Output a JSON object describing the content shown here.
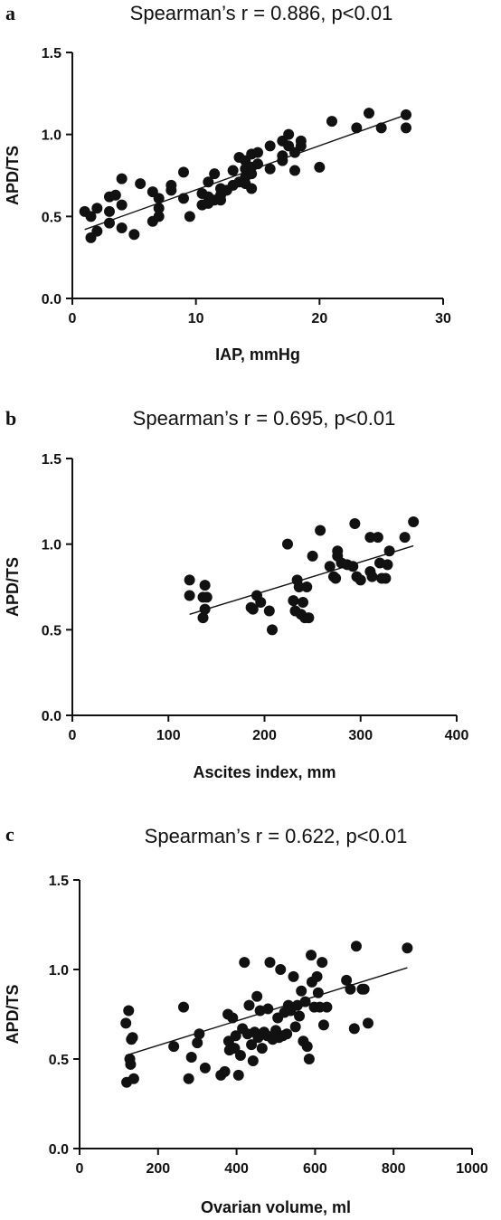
{
  "chart_data": [
    {
      "type": "scatter",
      "panel": "a",
      "title": "Spearman’s r = 0.886, p<0.01",
      "xlabel": "IAP, mmHg",
      "ylabel": "APD/TS",
      "xlim": [
        0,
        30
      ],
      "ylim": [
        0,
        1.5
      ],
      "xticks": [
        0,
        10,
        20,
        30
      ],
      "xtick_labels": [
        "0",
        "10",
        "20",
        "30"
      ],
      "yticks": [
        0,
        0.5,
        1.0,
        1.5
      ],
      "ytick_labels": [
        "0.0",
        "0.5",
        "1.0",
        "1.5"
      ],
      "grid": false,
      "fit_line": {
        "x": [
          1,
          27
        ],
        "y": [
          0.42,
          1.12
        ]
      },
      "points": [
        [
          1.0,
          0.53
        ],
        [
          1.5,
          0.5
        ],
        [
          1.5,
          0.37
        ],
        [
          2.0,
          0.55
        ],
        [
          2.0,
          0.41
        ],
        [
          3.0,
          0.62
        ],
        [
          3.0,
          0.53
        ],
        [
          3.0,
          0.46
        ],
        [
          3.5,
          0.63
        ],
        [
          4.0,
          0.73
        ],
        [
          4.0,
          0.57
        ],
        [
          4.0,
          0.43
        ],
        [
          5.0,
          0.39
        ],
        [
          5.5,
          0.7
        ],
        [
          6.5,
          0.65
        ],
        [
          6.5,
          0.47
        ],
        [
          7.0,
          0.61
        ],
        [
          7.0,
          0.55
        ],
        [
          7.0,
          0.5
        ],
        [
          8.0,
          0.69
        ],
        [
          8.0,
          0.66
        ],
        [
          9.0,
          0.77
        ],
        [
          9.0,
          0.61
        ],
        [
          9.5,
          0.5
        ],
        [
          10.5,
          0.64
        ],
        [
          10.5,
          0.57
        ],
        [
          11.0,
          0.71
        ],
        [
          11.0,
          0.62
        ],
        [
          11.0,
          0.58
        ],
        [
          11.5,
          0.76
        ],
        [
          11.5,
          0.6
        ],
        [
          12.0,
          0.67
        ],
        [
          12.0,
          0.63
        ],
        [
          12.0,
          0.6
        ],
        [
          12.5,
          0.66
        ],
        [
          13.0,
          0.78
        ],
        [
          13.0,
          0.69
        ],
        [
          13.5,
          0.86
        ],
        [
          13.5,
          0.71
        ],
        [
          14.0,
          0.84
        ],
        [
          14.0,
          0.79
        ],
        [
          14.0,
          0.74
        ],
        [
          14.0,
          0.7
        ],
        [
          14.5,
          0.88
        ],
        [
          14.5,
          0.8
        ],
        [
          14.5,
          0.76
        ],
        [
          14.5,
          0.67
        ],
        [
          15.0,
          0.89
        ],
        [
          15.0,
          0.82
        ],
        [
          16.0,
          0.93
        ],
        [
          16.0,
          0.79
        ],
        [
          17.0,
          0.96
        ],
        [
          17.0,
          0.87
        ],
        [
          17.0,
          0.84
        ],
        [
          17.5,
          1.0
        ],
        [
          17.5,
          0.93
        ],
        [
          18.0,
          0.89
        ],
        [
          18.0,
          0.78
        ],
        [
          18.5,
          0.96
        ],
        [
          18.5,
          0.93
        ],
        [
          20.0,
          0.8
        ],
        [
          21.0,
          1.08
        ],
        [
          23.0,
          1.04
        ],
        [
          24.0,
          1.13
        ],
        [
          25.0,
          1.04
        ],
        [
          27.0,
          1.12
        ],
        [
          27.0,
          1.04
        ]
      ]
    },
    {
      "type": "scatter",
      "panel": "b",
      "title": "Spearman’s r = 0.695, p<0.01",
      "xlabel": "Ascites index, mm",
      "ylabel": "APD/TS",
      "xlim": [
        0,
        400
      ],
      "ylim": [
        0,
        1.5
      ],
      "xticks": [
        0,
        100,
        200,
        300,
        400
      ],
      "xtick_labels": [
        "0",
        "100",
        "200",
        "300",
        "400"
      ],
      "yticks": [
        0,
        0.5,
        1.0,
        1.5
      ],
      "ytick_labels": [
        "0.0",
        "0.5",
        "1.0",
        "1.5"
      ],
      "grid": false,
      "fit_line": {
        "x": [
          122,
          355
        ],
        "y": [
          0.59,
          0.99
        ]
      },
      "points": [
        [
          122,
          0.79
        ],
        [
          122,
          0.7
        ],
        [
          136,
          0.69
        ],
        [
          136,
          0.57
        ],
        [
          138,
          0.76
        ],
        [
          138,
          0.62
        ],
        [
          140,
          0.69
        ],
        [
          186,
          0.63
        ],
        [
          188,
          0.62
        ],
        [
          192,
          0.7
        ],
        [
          196,
          0.66
        ],
        [
          205,
          0.61
        ],
        [
          208,
          0.5
        ],
        [
          224,
          1.0
        ],
        [
          230,
          0.67
        ],
        [
          232,
          0.61
        ],
        [
          234,
          0.79
        ],
        [
          236,
          0.75
        ],
        [
          238,
          0.59
        ],
        [
          240,
          0.66
        ],
        [
          242,
          0.57
        ],
        [
          244,
          0.75
        ],
        [
          246,
          0.57
        ],
        [
          250,
          0.93
        ],
        [
          258,
          1.08
        ],
        [
          268,
          0.87
        ],
        [
          272,
          0.81
        ],
        [
          274,
          0.8
        ],
        [
          276,
          0.96
        ],
        [
          276,
          0.93
        ],
        [
          280,
          0.89
        ],
        [
          286,
          0.88
        ],
        [
          292,
          0.87
        ],
        [
          294,
          1.12
        ],
        [
          296,
          0.81
        ],
        [
          300,
          0.79
        ],
        [
          310,
          1.04
        ],
        [
          310,
          0.84
        ],
        [
          312,
          0.81
        ],
        [
          318,
          1.04
        ],
        [
          320,
          0.89
        ],
        [
          322,
          0.8
        ],
        [
          326,
          0.8
        ],
        [
          328,
          0.88
        ],
        [
          330,
          0.96
        ],
        [
          346,
          1.04
        ],
        [
          355,
          1.13
        ]
      ]
    },
    {
      "type": "scatter",
      "panel": "c",
      "title": "Spearman’s r = 0.622, p<0.01",
      "xlabel": "Ovarian volume, ml",
      "ylabel": "APD/TS",
      "xlim": [
        0,
        1000
      ],
      "ylim": [
        0,
        1.5
      ],
      "xticks": [
        0,
        200,
        400,
        600,
        800,
        1000
      ],
      "xtick_labels": [
        "0",
        "200",
        "400",
        "600",
        "800",
        "1000"
      ],
      "yticks": [
        0,
        0.5,
        1.0,
        1.5
      ],
      "ytick_labels": [
        "0.0",
        "0.5",
        "1.0",
        "1.5"
      ],
      "grid": false,
      "fit_line": {
        "x": [
          118,
          835
        ],
        "y": [
          0.52,
          1.01
        ]
      },
      "points": [
        [
          118,
          0.7
        ],
        [
          120,
          0.37
        ],
        [
          125,
          0.77
        ],
        [
          128,
          0.5
        ],
        [
          130,
          0.47
        ],
        [
          132,
          0.61
        ],
        [
          135,
          0.62
        ],
        [
          138,
          0.39
        ],
        [
          240,
          0.57
        ],
        [
          265,
          0.79
        ],
        [
          278,
          0.39
        ],
        [
          285,
          0.51
        ],
        [
          300,
          0.59
        ],
        [
          305,
          0.64
        ],
        [
          320,
          0.45
        ],
        [
          360,
          0.41
        ],
        [
          370,
          0.43
        ],
        [
          378,
          0.75
        ],
        [
          380,
          0.6
        ],
        [
          382,
          0.55
        ],
        [
          390,
          0.73
        ],
        [
          395,
          0.56
        ],
        [
          398,
          0.63
        ],
        [
          405,
          0.41
        ],
        [
          410,
          0.52
        ],
        [
          415,
          0.67
        ],
        [
          420,
          1.04
        ],
        [
          428,
          0.64
        ],
        [
          432,
          0.8
        ],
        [
          438,
          0.58
        ],
        [
          442,
          0.49
        ],
        [
          446,
          0.65
        ],
        [
          452,
          0.85
        ],
        [
          455,
          0.62
        ],
        [
          460,
          0.77
        ],
        [
          465,
          0.56
        ],
        [
          470,
          0.65
        ],
        [
          478,
          0.63
        ],
        [
          480,
          0.78
        ],
        [
          485,
          1.04
        ],
        [
          492,
          0.61
        ],
        [
          500,
          0.66
        ],
        [
          505,
          0.73
        ],
        [
          508,
          0.62
        ],
        [
          512,
          1.0
        ],
        [
          518,
          0.63
        ],
        [
          522,
          0.76
        ],
        [
          528,
          0.64
        ],
        [
          532,
          0.8
        ],
        [
          538,
          0.77
        ],
        [
          545,
          0.96
        ],
        [
          550,
          0.68
        ],
        [
          555,
          0.8
        ],
        [
          560,
          0.74
        ],
        [
          565,
          0.88
        ],
        [
          570,
          0.6
        ],
        [
          575,
          0.82
        ],
        [
          580,
          0.57
        ],
        [
          585,
          0.5
        ],
        [
          590,
          1.08
        ],
        [
          592,
          0.93
        ],
        [
          598,
          0.79
        ],
        [
          605,
          0.96
        ],
        [
          608,
          0.87
        ],
        [
          612,
          0.79
        ],
        [
          618,
          1.04
        ],
        [
          622,
          0.69
        ],
        [
          630,
          0.79
        ],
        [
          680,
          0.94
        ],
        [
          690,
          0.89
        ],
        [
          700,
          0.67
        ],
        [
          705,
          1.13
        ],
        [
          720,
          0.89
        ],
        [
          725,
          0.89
        ],
        [
          735,
          0.7
        ],
        [
          835,
          1.12
        ]
      ]
    }
  ]
}
